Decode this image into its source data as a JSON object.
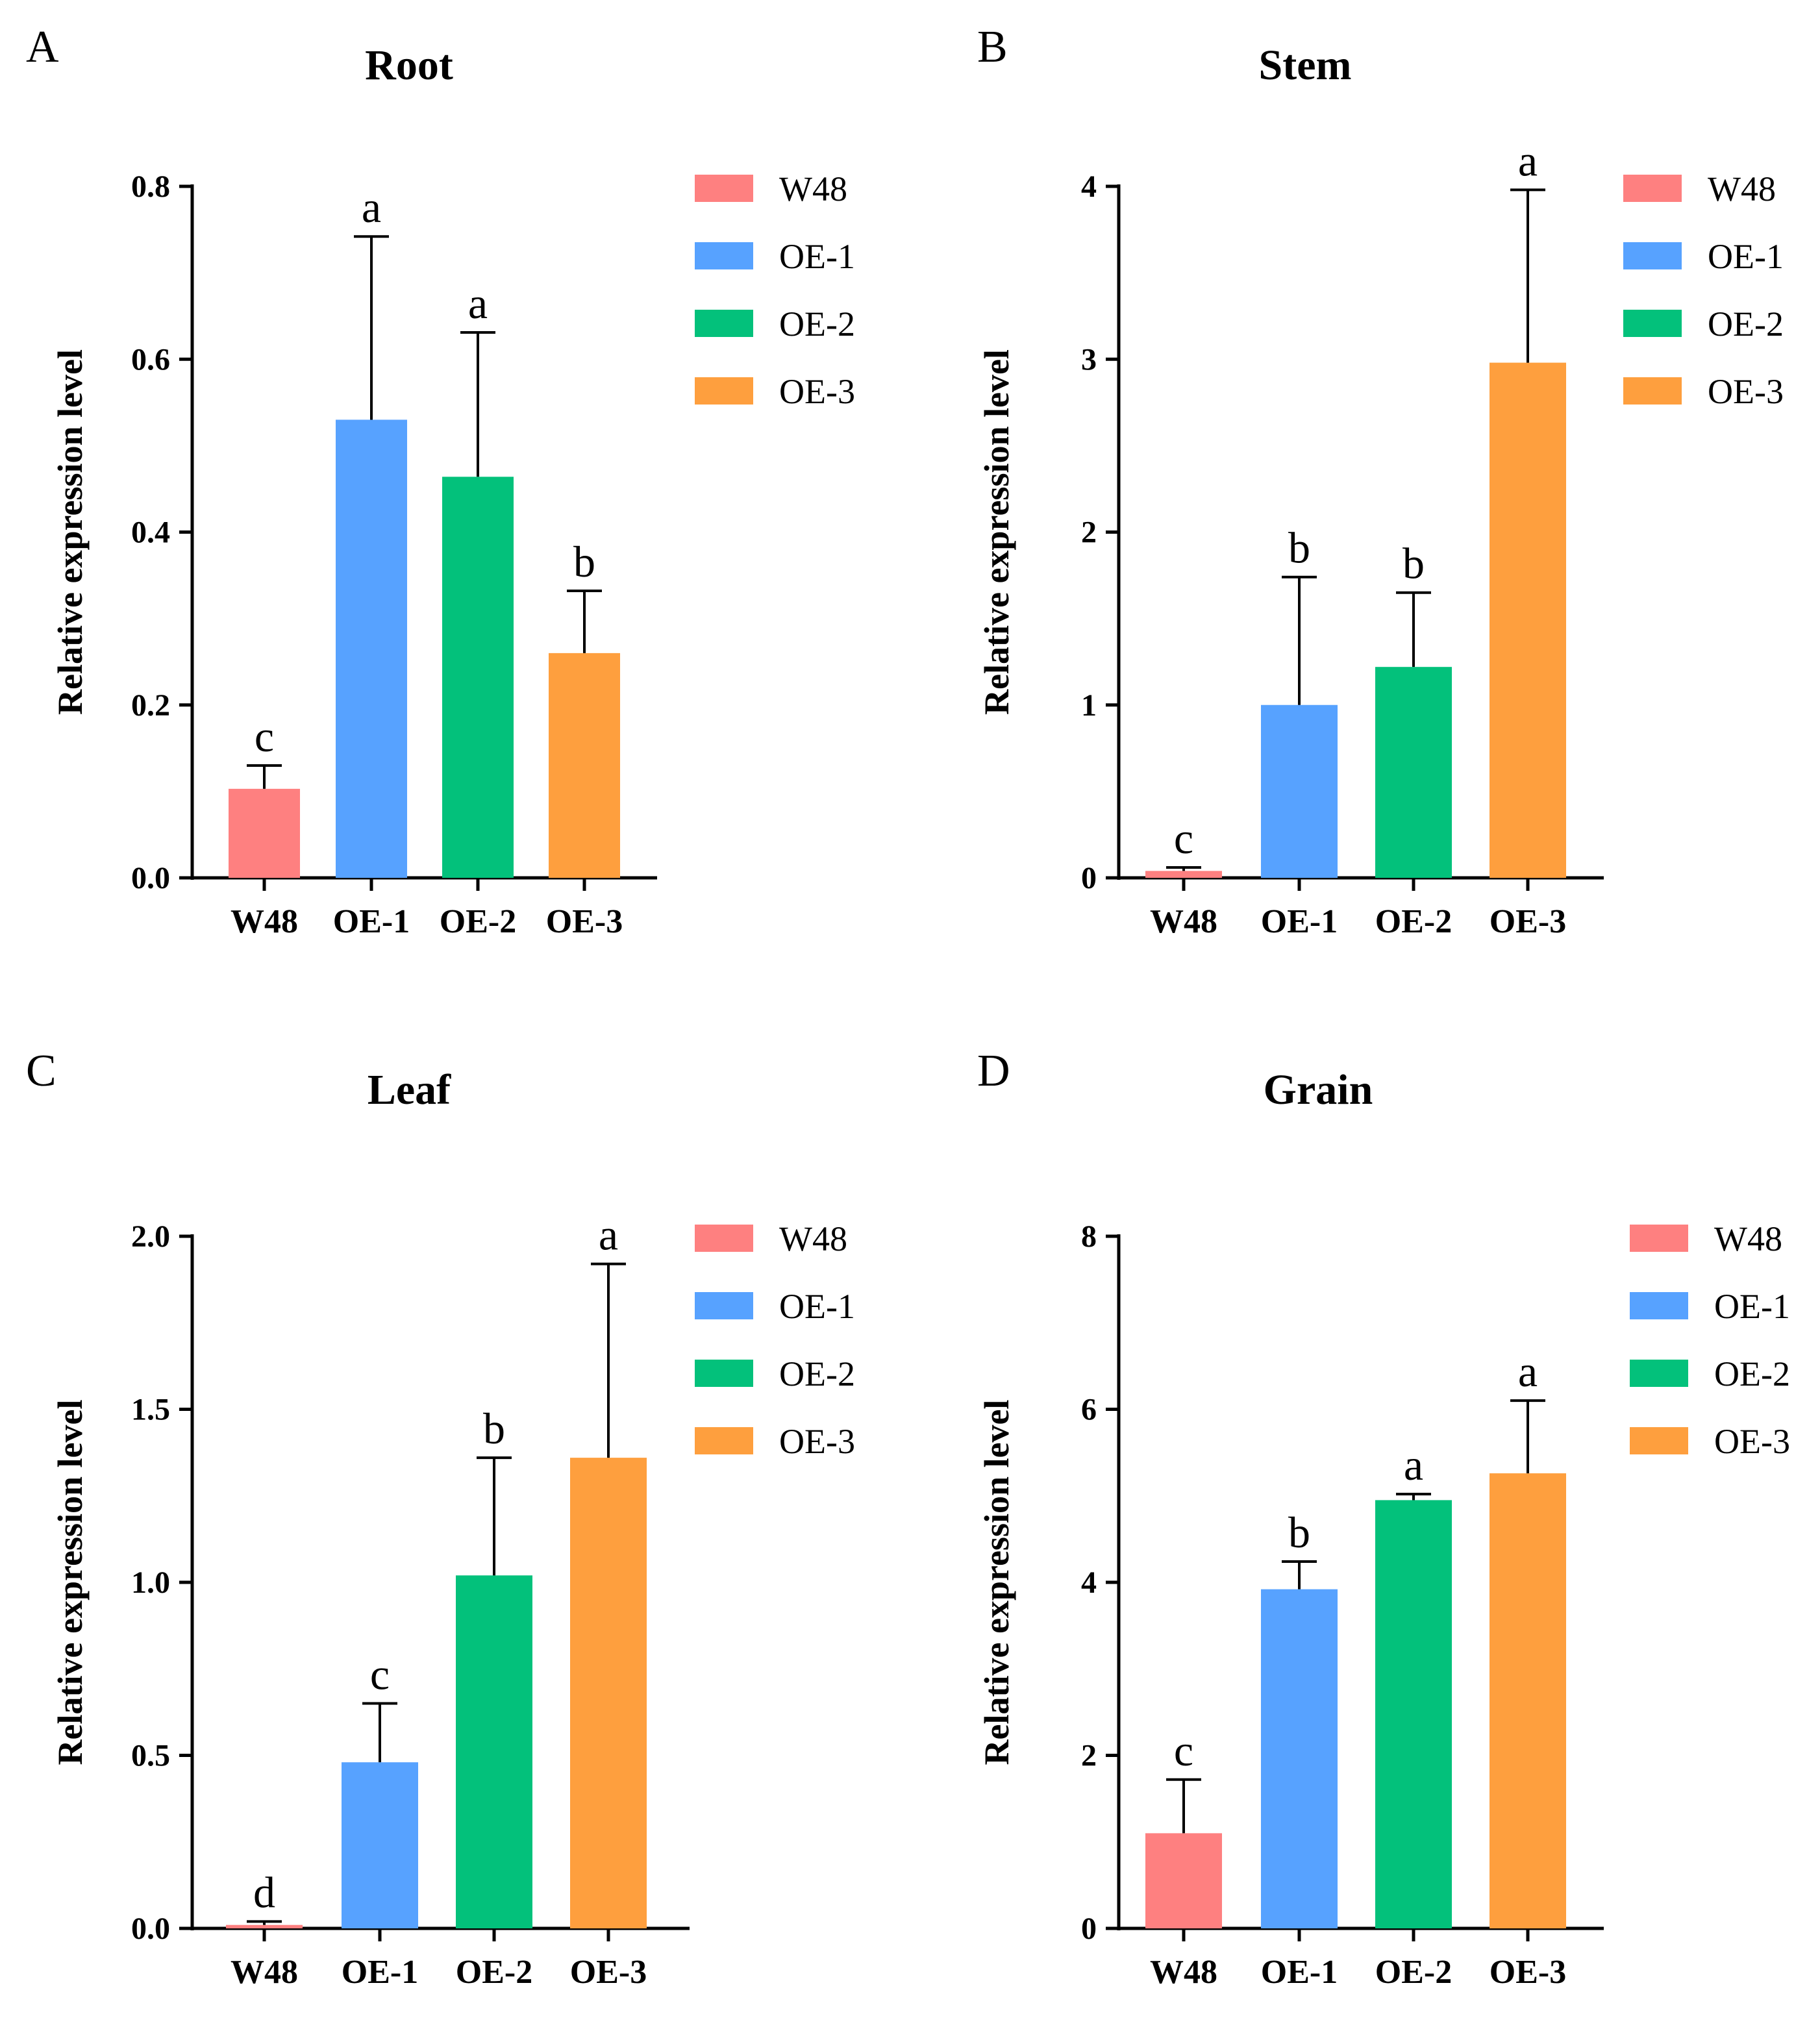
{
  "colors": {
    "W48": "#fe8080",
    "OE-1": "#57a2ff",
    "OE-2": "#03c17b",
    "OE-3": "#fe9f3e"
  },
  "chart_data": [
    {
      "type": "bar",
      "panel": "A",
      "title": "Root",
      "xlabel": "",
      "ylabel": "Relative expression level",
      "categories": [
        "W48",
        "OE-1",
        "OE-2",
        "OE-3"
      ],
      "values": [
        0.103,
        0.53,
        0.464,
        0.26
      ],
      "errors": [
        0.027,
        0.212,
        0.167,
        0.072
      ],
      "significance": [
        "c",
        "a",
        "a",
        "b"
      ],
      "ylim": [
        0,
        0.8
      ],
      "yticks": [
        0.0,
        0.2,
        0.4,
        0.6,
        0.8
      ],
      "ytick_labels": [
        "0.0",
        "0.2",
        "0.4",
        "0.6",
        "0.8"
      ],
      "legend": [
        "W48",
        "OE-1",
        "OE-2",
        "OE-3"
      ],
      "legend_position": "right"
    },
    {
      "type": "bar",
      "panel": "B",
      "title": "Stem",
      "xlabel": "",
      "ylabel": "Relative expression level",
      "categories": [
        "W48",
        "OE-1",
        "OE-2",
        "OE-3"
      ],
      "values": [
        0.04,
        1.0,
        1.22,
        2.98
      ],
      "errors": [
        0.02,
        0.74,
        0.43,
        1.0
      ],
      "significance": [
        "c",
        "b",
        "b",
        "a"
      ],
      "ylim": [
        0,
        4
      ],
      "yticks": [
        0,
        1,
        2,
        3,
        4
      ],
      "ytick_labels": [
        "0",
        "1",
        "2",
        "3",
        "4"
      ],
      "legend": [
        "W48",
        "OE-1",
        "OE-2",
        "OE-3"
      ],
      "legend_position": "right"
    },
    {
      "type": "bar",
      "panel": "C",
      "title": "Leaf",
      "xlabel": "",
      "ylabel": "Relative expression level",
      "categories": [
        "W48",
        "OE-1",
        "OE-2",
        "OE-3"
      ],
      "values": [
        0.01,
        0.48,
        1.02,
        1.36
      ],
      "errors": [
        0.01,
        0.17,
        0.34,
        0.56
      ],
      "significance": [
        "d",
        "c",
        "b",
        "a"
      ],
      "ylim": [
        0,
        2.0
      ],
      "yticks": [
        0.0,
        0.5,
        1.0,
        1.5,
        2.0
      ],
      "ytick_labels": [
        "0.0",
        "0.5",
        "1.0",
        "1.5",
        "2.0"
      ],
      "legend": [
        "W48",
        "OE-1",
        "OE-2",
        "OE-3"
      ],
      "legend_position": "right"
    },
    {
      "type": "bar",
      "panel": "D",
      "title": "Grain",
      "xlabel": "",
      "ylabel": "Relative expression level",
      "categories": [
        "W48",
        "OE-1",
        "OE-2",
        "OE-3"
      ],
      "values": [
        1.1,
        3.92,
        4.95,
        5.26
      ],
      "errors": [
        0.62,
        0.32,
        0.07,
        0.84
      ],
      "significance": [
        "c",
        "b",
        "a",
        "a"
      ],
      "ylim": [
        0,
        8
      ],
      "yticks": [
        0,
        2,
        4,
        6,
        8
      ],
      "ytick_labels": [
        "0",
        "2",
        "4",
        "6",
        "8"
      ],
      "legend": [
        "W48",
        "OE-1",
        "OE-2",
        "OE-3"
      ],
      "legend_position": "right"
    }
  ]
}
